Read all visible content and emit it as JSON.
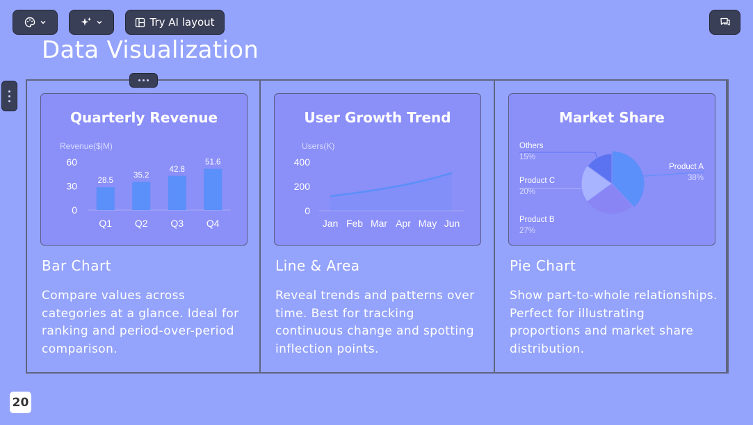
{
  "toolbar": {
    "theme_icon": "palette-icon",
    "ai_icon": "sparkles-icon",
    "layout_icon": "layout-icon",
    "layout_label": "Try AI layout",
    "comment_icon": "comment-icon"
  },
  "page": {
    "title": "Data Visualization",
    "number": "20"
  },
  "sections": [
    {
      "heading": "Bar Chart",
      "description": "Compare values across categories at a glance. Ideal for ranking and period-over-period comparison."
    },
    {
      "heading": "Line & Area",
      "description": "Reveal trends and patterns over time. Best for tracking continuous change and spotting inflection points."
    },
    {
      "heading": "Pie Chart",
      "description": "Show part-to-whole relationships. Perfect for illustrating proportions and market share distribution."
    }
  ],
  "chart_data": [
    {
      "type": "bar",
      "title": "Quarterly Revenue",
      "ylabel": "Revenue($|M)",
      "categories": [
        "Q1",
        "Q2",
        "Q3",
        "Q4"
      ],
      "values": [
        28.5,
        35.2,
        42.8,
        51.6
      ],
      "data_labels": [
        "28.5",
        "35.2",
        "42.8",
        "51.6"
      ],
      "yticks": [
        "0",
        "30",
        "60"
      ],
      "ylim": [
        0,
        60
      ],
      "color": "#5b8ff9",
      "grid": false
    },
    {
      "type": "area",
      "title": "User Growth Trend",
      "ylabel": "Users(K)",
      "categories": [
        "Jan",
        "Feb",
        "Mar",
        "Apr",
        "May",
        "Jun"
      ],
      "values": [
        120,
        145,
        175,
        210,
        255,
        310
      ],
      "yticks": [
        "0",
        "200",
        "400"
      ],
      "ylim": [
        0,
        400
      ],
      "color": "#5b8ff9",
      "grid": false
    },
    {
      "type": "pie",
      "title": "Market Share",
      "slices": [
        {
          "name": "Product A",
          "pct": "38%",
          "value": 38,
          "color": "#5b8ff9"
        },
        {
          "name": "Product B",
          "pct": "27%",
          "value": 27,
          "color": "#8a85f4"
        },
        {
          "name": "Product C",
          "pct": "20%",
          "value": 20,
          "color": "#a8b4ff"
        },
        {
          "name": "Others",
          "pct": "15%",
          "value": 15,
          "color": "#5b73f0"
        }
      ]
    }
  ]
}
